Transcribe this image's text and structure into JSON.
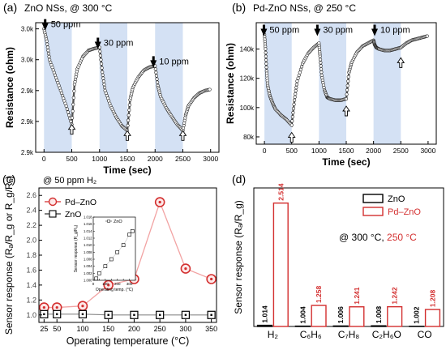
{
  "chart_data": [
    {
      "panel": "(a)",
      "type": "line",
      "title": "ZnO NSs, @ 300 °C",
      "xlabel": "Time (sec)",
      "ylabel": "Resistance (ohm)",
      "xlim": [
        -150,
        3150
      ],
      "ylim": [
        2850,
        3060
      ],
      "x_ticks": [
        0,
        500,
        1000,
        1500,
        2000,
        2500,
        3000
      ],
      "y_ticks": [
        {
          "value": 2850,
          "label": "2.9k"
        },
        {
          "value": 2900,
          "label": "2.9k"
        },
        {
          "value": 2950,
          "label": "2.9k"
        },
        {
          "value": 3000,
          "label": "3.0k"
        },
        {
          "value": 3050,
          "label": "3.0k"
        }
      ],
      "gas_on_intervals": [
        [
          0,
          500
        ],
        [
          1000,
          1500
        ],
        [
          2000,
          2500
        ]
      ],
      "annotations": [
        {
          "text": "50 ppm",
          "x": 50,
          "y": 3050,
          "arrow": "down"
        },
        {
          "text": "30 ppm",
          "x": 1000,
          "y": 3020,
          "arrow": "down"
        },
        {
          "text": "10 ppm",
          "x": 2000,
          "y": 2990,
          "arrow": "down"
        },
        {
          "x": 500,
          "y": 2895,
          "arrow": "up"
        },
        {
          "x": 1500,
          "y": 2885,
          "arrow": "up"
        },
        {
          "x": 2500,
          "y": 2885,
          "arrow": "up"
        }
      ],
      "series": [
        {
          "x": [
            0,
            50,
            100,
            200,
            300,
            400,
            500,
            550,
            600,
            700,
            800,
            900,
            1000,
            1050,
            1100,
            1200,
            1300,
            1400,
            1500,
            1550,
            1600,
            1700,
            1800,
            1900,
            2000,
            2050,
            2100,
            2200,
            2300,
            2400,
            2500,
            2550,
            2600,
            2700,
            2800,
            2900,
            3000
          ],
          "y": [
            3050,
            3030,
            3000,
            2975,
            2950,
            2925,
            2895,
            2960,
            2985,
            3005,
            3015,
            3018,
            3020,
            2980,
            2950,
            2925,
            2907,
            2893,
            2885,
            2935,
            2955,
            2972,
            2983,
            2988,
            2990,
            2958,
            2940,
            2922,
            2908,
            2895,
            2885,
            2910,
            2925,
            2938,
            2946,
            2950,
            2952
          ]
        }
      ]
    },
    {
      "panel": "(b)",
      "type": "line",
      "title": "Pd-ZnO NSs, @ 250 °C",
      "xlabel": "Time (sec)",
      "ylabel": "Resistance (ohm)",
      "xlim": [
        -150,
        3150
      ],
      "ylim": [
        75,
        158
      ],
      "x_ticks": [
        0,
        500,
        1000,
        1500,
        2000,
        2500,
        3000
      ],
      "y_ticks": [
        {
          "value": 80,
          "label": "80k"
        },
        {
          "value": 100,
          "label": "100k"
        },
        {
          "value": 120,
          "label": "120k"
        },
        {
          "value": 140,
          "label": "140k"
        }
      ],
      "gas_on_intervals": [
        [
          0,
          500
        ],
        [
          1000,
          1500
        ],
        [
          2000,
          2500
        ]
      ],
      "annotations": [
        {
          "text": "50 ppm",
          "x": 20,
          "y": 150,
          "arrow": "down"
        },
        {
          "text": "30 ppm",
          "x": 1000,
          "y": 150,
          "arrow": "down"
        },
        {
          "text": "10 ppm",
          "x": 2050,
          "y": 150,
          "arrow": "down"
        },
        {
          "x": 500,
          "y": 83,
          "arrow": "up"
        },
        {
          "x": 1500,
          "y": 101,
          "arrow": "up"
        },
        {
          "x": 2500,
          "y": 134,
          "arrow": "up"
        }
      ],
      "series": [
        {
          "x": [
            0,
            20,
            40,
            60,
            100,
            150,
            200,
            300,
            400,
            500,
            550,
            600,
            700,
            800,
            900,
            1000,
            1020,
            1050,
            1100,
            1150,
            1200,
            1300,
            1400,
            1500,
            1550,
            1600,
            1700,
            1800,
            1900,
            2000,
            2020,
            2050,
            2100,
            2200,
            2300,
            2400,
            2500,
            2600,
            2700,
            2800,
            2900,
            3000
          ],
          "y": [
            150,
            140,
            125,
            115,
            108,
            103,
            99,
            95,
            92,
            88,
            105,
            118,
            130,
            137,
            141,
            144,
            135,
            122,
            112,
            107,
            106,
            105,
            105,
            106,
            124,
            131,
            138,
            142,
            144,
            146,
            143,
            141,
            140,
            139,
            139,
            140,
            141,
            144,
            146,
            147,
            148,
            149
          ]
        }
      ]
    },
    {
      "panel": "(c)",
      "type": "line",
      "title": "@ 50 ppm H₂",
      "xlabel": "Operating temperature (°C)",
      "ylabel": "Sensor response (Rₐ/R_g or R_g/Rₐ)",
      "xlim": [
        15,
        360
      ],
      "ylim": [
        0.9,
        2.7
      ],
      "x_ticks": [
        25,
        50,
        100,
        150,
        200,
        250,
        300,
        350
      ],
      "y_ticks": [
        1.0,
        1.2,
        1.4,
        1.6,
        1.8,
        2.0,
        2.2,
        2.4,
        2.6
      ],
      "legend": "top-left",
      "series": [
        {
          "name": "Pd–ZnO",
          "color": "#d32f2f",
          "x": [
            25,
            50,
            100,
            150,
            200,
            250,
            300,
            350
          ],
          "values": [
            1.1,
            1.1,
            1.12,
            1.4,
            1.48,
            2.51,
            1.62,
            1.48
          ]
        },
        {
          "name": "ZnO",
          "color": "#000000",
          "x": [
            25,
            50,
            100,
            150,
            200,
            250,
            300,
            350
          ],
          "values": [
            1.01,
            1.01,
            1.01,
            1.0,
            1.0,
            1.0,
            1.0,
            1.0
          ]
        }
      ],
      "inset": {
        "type": "scatter",
        "xlabel": "Operating temp. (°C)",
        "ylabel": "Sensor response (R_g/Rₐ)",
        "xlim": [
          0,
          350
        ],
        "ylim": [
          1.0,
          1.018
        ],
        "x_ticks": [
          0,
          50,
          100,
          150,
          200,
          250,
          300,
          350
        ],
        "x_tick_labels": [
          "0",
          "",
          "100",
          "",
          "200",
          "",
          "300",
          ""
        ],
        "y_ticks": [
          1.0,
          1.002,
          1.004,
          1.006,
          1.008,
          1.01,
          1.012,
          1.014,
          1.016,
          1.018
        ],
        "y_tick_labels": [
          "1.000",
          "1.002",
          "1.004",
          "1.006",
          "1.008",
          "1.010",
          "1.012",
          "1.014",
          "1.016",
          "1.018"
        ],
        "series": [
          {
            "name": "ZnO",
            "x": [
              25,
              50,
              100,
              150,
              200,
              250,
              300,
              325
            ],
            "values": [
              1.0005,
              1.002,
              1.004,
              1.006,
              1.008,
              1.01,
              1.013,
              1.014
            ]
          }
        ]
      }
    },
    {
      "panel": "(d)",
      "type": "bar",
      "title": "@ 300 °C, 250 °C",
      "title_parts": [
        "@ 300 °C, ",
        "250 °C"
      ],
      "xlabel": "",
      "ylabel": "Sensor response (Rₐ/R_g)",
      "ylim": [
        1.0,
        2.7
      ],
      "legend": "top-right",
      "categories": [
        "H₂",
        "C₆H₆",
        "C₇H₈",
        "C₂H₆O",
        "CO"
      ],
      "series": [
        {
          "name": "ZnO",
          "color": "#000000",
          "values": [
            1.014,
            1.004,
            1.006,
            1.008,
            1.002
          ],
          "labels": [
            "1.014",
            "1.004",
            "1.006",
            "1.008",
            "1.002"
          ]
        },
        {
          "name": "Pd–ZnO",
          "color": "#d32f2f",
          "values": [
            2.514,
            1.258,
            1.241,
            1.242,
            1.208
          ],
          "labels": [
            "2.514",
            "1.258",
            "1.241",
            "1.242",
            "1.208"
          ]
        }
      ]
    }
  ]
}
